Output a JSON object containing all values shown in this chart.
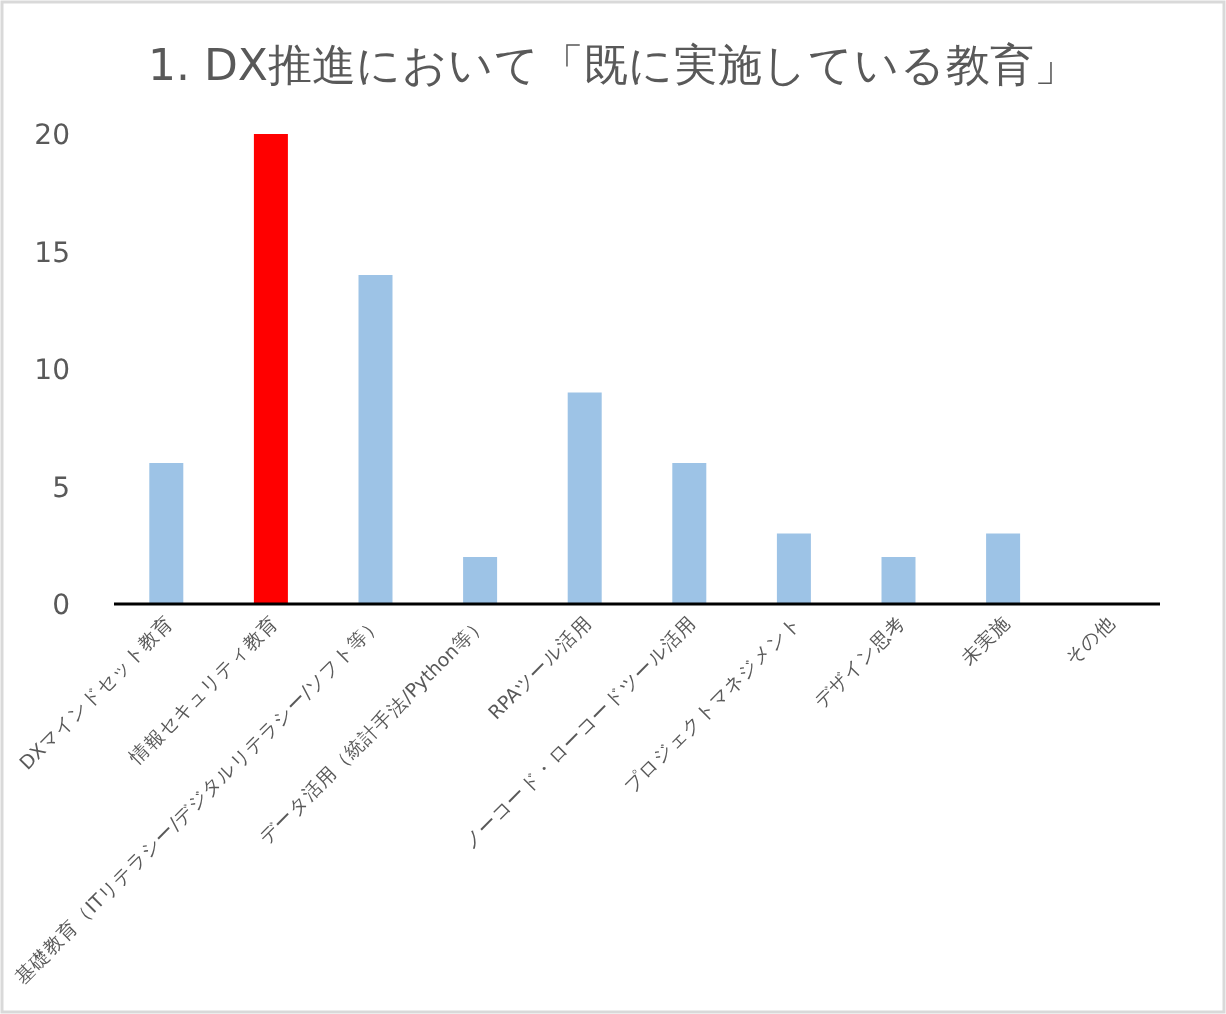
{
  "chart_data": {
    "type": "bar",
    "title": "1. DX推進において「既に実施している教育」",
    "categories": [
      "DXマインドセット教育",
      "情報セキュリティ教育",
      "基礎教育（ITリテラシー/デジタルリテラシー/ソフト等）",
      "データ活用（統計手法/Python等）",
      "RPAツール活用",
      "ノーコード・ローコードツール活用",
      "プロジェクトマネジメント",
      "デザイン思考",
      "未実施",
      "その他"
    ],
    "values": [
      6,
      20,
      14,
      2,
      9,
      6,
      3,
      2,
      3,
      0
    ],
    "colors": [
      "#9dc3e6",
      "#ff0000",
      "#9dc3e6",
      "#9dc3e6",
      "#9dc3e6",
      "#9dc3e6",
      "#9dc3e6",
      "#9dc3e6",
      "#9dc3e6",
      "#9dc3e6"
    ],
    "ylim": [
      0,
      20
    ],
    "yticks": [
      0,
      5,
      10,
      15,
      20
    ],
    "grid": false
  }
}
